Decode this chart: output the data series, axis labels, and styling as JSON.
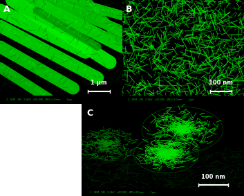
{
  "fig_width": 3.53,
  "fig_height": 2.83,
  "dpi": 100,
  "background_color": "#ffffff",
  "panel_A": {
    "label": "A",
    "scale_bar_text": "1 μm",
    "bg_color": "#000000",
    "fiber_color": "#00ff00",
    "dark_green": "#003300",
    "mid_green": "#00aa00"
  },
  "panel_B": {
    "label": "B",
    "scale_bar_text": "100 nm",
    "bg_color": "#000000",
    "fiber_color": "#00ff00"
  },
  "panel_C": {
    "label": "C",
    "scale_bar_text": "100 nm",
    "bg_color": "#000000",
    "fiber_color": "#00ff00"
  },
  "label_color": "#ffffff",
  "label_fontsize": 9,
  "scale_bar_fontsize": 7,
  "metadata_bar_color": "#000000",
  "metadata_text_color": "#00cc00",
  "metadata_fontsize": 3.5,
  "metadata_text": "2   SEM   SEI   5.0kV   x20,000   WD=3.0mm        1μm"
}
